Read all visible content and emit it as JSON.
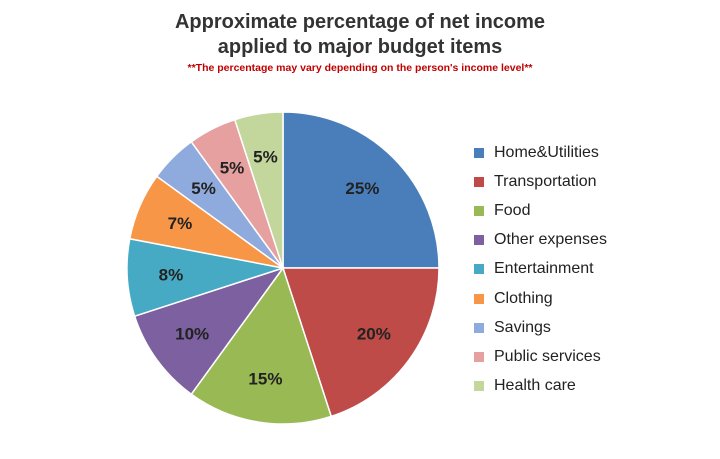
{
  "chart_data": {
    "type": "pie",
    "title": "Approximate percentage of net income applied to major budget items",
    "title_lines": [
      "Approximate percentage of net income",
      "applied to major budget items"
    ],
    "subtitle": "**The percentage may vary depending on the person's income level**",
    "categories": [
      "Home&Utilities",
      "Transportation",
      "Food",
      "Other expenses",
      "Entertainment",
      "Clothing",
      "Savings",
      "Public services",
      "Health care"
    ],
    "values": [
      25,
      20,
      15,
      10,
      8,
      7,
      5,
      5,
      5
    ],
    "labels": [
      "25%",
      "20%",
      "15%",
      "10%",
      "8%",
      "7%",
      "5%",
      "5%",
      "5%"
    ],
    "colors": [
      "#4a7ebb",
      "#be4b48",
      "#98b954",
      "#7d60a0",
      "#46aac5",
      "#f79646",
      "#8faadc",
      "#e6a0a0",
      "#c3d69b"
    ],
    "legend_position": "right"
  }
}
